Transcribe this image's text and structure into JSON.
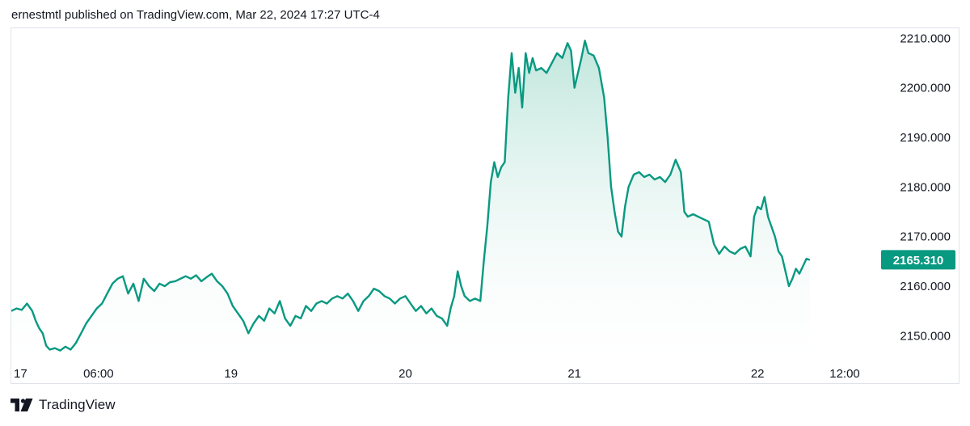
{
  "header": {
    "text": "ernestmtl published on TradingView.com, Mar 22, 2024 17:27 UTC-4"
  },
  "footer": {
    "brand": "TradingView",
    "logo_icon": "tradingview-logo-icon"
  },
  "colors": {
    "line": "#089981",
    "fill_top": "#b8e3d8",
    "fill_bottom": "#ffffff",
    "tag_bg": "#089981",
    "border": "#e0e3eb"
  },
  "chart_data": {
    "type": "area",
    "ylim": [
      2145,
      2212
    ],
    "y_ticks": [
      2150,
      2160,
      2170,
      2180,
      2190,
      2200,
      2210
    ],
    "y_tick_labels": [
      "2150.000",
      "2160.000",
      "2170.000",
      "2180.000",
      "2190.000",
      "2200.000",
      "2210.000"
    ],
    "x_ticks": [
      {
        "label": "17",
        "t": 0
      },
      {
        "label": "06:00",
        "t": 0.5
      },
      {
        "label": "19",
        "t": 1.26
      },
      {
        "label": "20",
        "t": 2.26
      },
      {
        "label": "21",
        "t": 3.23
      },
      {
        "label": "22",
        "t": 4.28
      },
      {
        "label": "12:00",
        "t": 4.78
      }
    ],
    "last_value": 2165.31,
    "last_value_label": "2165.310",
    "t_end": 4.97,
    "points": [
      [
        0.0,
        2155.0
      ],
      [
        0.03,
        2155.5
      ],
      [
        0.06,
        2155.2
      ],
      [
        0.09,
        2156.5
      ],
      [
        0.12,
        2155.0
      ],
      [
        0.14,
        2153.0
      ],
      [
        0.16,
        2151.5
      ],
      [
        0.18,
        2150.5
      ],
      [
        0.2,
        2148.0
      ],
      [
        0.22,
        2147.2
      ],
      [
        0.25,
        2147.5
      ],
      [
        0.28,
        2147.0
      ],
      [
        0.31,
        2147.8
      ],
      [
        0.34,
        2147.2
      ],
      [
        0.37,
        2148.5
      ],
      [
        0.4,
        2150.5
      ],
      [
        0.43,
        2152.5
      ],
      [
        0.46,
        2154.0
      ],
      [
        0.49,
        2155.5
      ],
      [
        0.52,
        2156.5
      ],
      [
        0.55,
        2158.5
      ],
      [
        0.58,
        2160.5
      ],
      [
        0.61,
        2161.5
      ],
      [
        0.64,
        2162.0
      ],
      [
        0.67,
        2158.5
      ],
      [
        0.7,
        2160.5
      ],
      [
        0.73,
        2157.0
      ],
      [
        0.76,
        2161.5
      ],
      [
        0.79,
        2160.0
      ],
      [
        0.82,
        2159.0
      ],
      [
        0.85,
        2160.5
      ],
      [
        0.88,
        2160.0
      ],
      [
        0.91,
        2160.8
      ],
      [
        0.94,
        2161.0
      ],
      [
        0.97,
        2161.5
      ],
      [
        1.0,
        2162.0
      ],
      [
        1.03,
        2161.5
      ],
      [
        1.06,
        2162.2
      ],
      [
        1.09,
        2161.0
      ],
      [
        1.12,
        2161.8
      ],
      [
        1.15,
        2162.5
      ],
      [
        1.18,
        2161.0
      ],
      [
        1.21,
        2160.0
      ],
      [
        1.24,
        2158.5
      ],
      [
        1.27,
        2156.0
      ],
      [
        1.3,
        2154.5
      ],
      [
        1.33,
        2153.0
      ],
      [
        1.36,
        2150.5
      ],
      [
        1.39,
        2152.5
      ],
      [
        1.42,
        2154.0
      ],
      [
        1.45,
        2153.0
      ],
      [
        1.48,
        2155.5
      ],
      [
        1.51,
        2154.5
      ],
      [
        1.54,
        2157.0
      ],
      [
        1.57,
        2153.5
      ],
      [
        1.6,
        2152.0
      ],
      [
        1.63,
        2154.0
      ],
      [
        1.66,
        2153.5
      ],
      [
        1.69,
        2156.0
      ],
      [
        1.72,
        2155.0
      ],
      [
        1.75,
        2156.5
      ],
      [
        1.78,
        2157.0
      ],
      [
        1.81,
        2156.5
      ],
      [
        1.84,
        2157.5
      ],
      [
        1.87,
        2158.0
      ],
      [
        1.9,
        2157.5
      ],
      [
        1.93,
        2158.5
      ],
      [
        1.96,
        2157.0
      ],
      [
        1.99,
        2155.0
      ],
      [
        2.02,
        2157.0
      ],
      [
        2.05,
        2158.0
      ],
      [
        2.08,
        2159.5
      ],
      [
        2.11,
        2159.0
      ],
      [
        2.14,
        2158.0
      ],
      [
        2.17,
        2157.5
      ],
      [
        2.2,
        2156.5
      ],
      [
        2.23,
        2157.5
      ],
      [
        2.26,
        2158.0
      ],
      [
        2.29,
        2156.5
      ],
      [
        2.32,
        2155.0
      ],
      [
        2.35,
        2156.0
      ],
      [
        2.38,
        2154.5
      ],
      [
        2.41,
        2155.5
      ],
      [
        2.44,
        2154.0
      ],
      [
        2.47,
        2153.5
      ],
      [
        2.5,
        2152.0
      ],
      [
        2.52,
        2155.5
      ],
      [
        2.54,
        2158.0
      ],
      [
        2.56,
        2163.0
      ],
      [
        2.58,
        2160.0
      ],
      [
        2.6,
        2158.0
      ],
      [
        2.63,
        2157.0
      ],
      [
        2.66,
        2157.5
      ],
      [
        2.69,
        2157.0
      ],
      [
        2.71,
        2165.0
      ],
      [
        2.73,
        2172.0
      ],
      [
        2.75,
        2181.0
      ],
      [
        2.77,
        2185.0
      ],
      [
        2.79,
        2182.0
      ],
      [
        2.81,
        2184.0
      ],
      [
        2.83,
        2185.0
      ],
      [
        2.85,
        2198.0
      ],
      [
        2.87,
        2207.0
      ],
      [
        2.89,
        2199.0
      ],
      [
        2.91,
        2204.0
      ],
      [
        2.93,
        2196.0
      ],
      [
        2.95,
        2207.0
      ],
      [
        2.97,
        2203.0
      ],
      [
        2.99,
        2206.0
      ],
      [
        3.01,
        2203.5
      ],
      [
        3.04,
        2204.0
      ],
      [
        3.07,
        2203.0
      ],
      [
        3.1,
        2205.0
      ],
      [
        3.13,
        2207.0
      ],
      [
        3.16,
        2206.0
      ],
      [
        3.19,
        2209.0
      ],
      [
        3.21,
        2207.5
      ],
      [
        3.23,
        2200.0
      ],
      [
        3.25,
        2203.0
      ],
      [
        3.27,
        2206.0
      ],
      [
        3.29,
        2209.5
      ],
      [
        3.31,
        2207.0
      ],
      [
        3.34,
        2206.5
      ],
      [
        3.37,
        2204.0
      ],
      [
        3.4,
        2198.0
      ],
      [
        3.42,
        2190.0
      ],
      [
        3.44,
        2180.0
      ],
      [
        3.46,
        2175.0
      ],
      [
        3.48,
        2171.0
      ],
      [
        3.5,
        2170.0
      ],
      [
        3.52,
        2176.0
      ],
      [
        3.54,
        2180.0
      ],
      [
        3.57,
        2182.5
      ],
      [
        3.6,
        2183.0
      ],
      [
        3.63,
        2182.0
      ],
      [
        3.66,
        2182.5
      ],
      [
        3.69,
        2181.5
      ],
      [
        3.72,
        2182.0
      ],
      [
        3.75,
        2181.0
      ],
      [
        3.78,
        2182.5
      ],
      [
        3.81,
        2185.5
      ],
      [
        3.84,
        2183.0
      ],
      [
        3.86,
        2175.0
      ],
      [
        3.88,
        2174.0
      ],
      [
        3.91,
        2174.5
      ],
      [
        3.94,
        2174.0
      ],
      [
        3.97,
        2173.5
      ],
      [
        4.0,
        2173.0
      ],
      [
        4.03,
        2168.5
      ],
      [
        4.06,
        2166.5
      ],
      [
        4.09,
        2168.0
      ],
      [
        4.12,
        2167.0
      ],
      [
        4.15,
        2166.5
      ],
      [
        4.18,
        2167.5
      ],
      [
        4.21,
        2168.0
      ],
      [
        4.24,
        2166.0
      ],
      [
        4.26,
        2174.0
      ],
      [
        4.28,
        2176.0
      ],
      [
        4.3,
        2175.5
      ],
      [
        4.32,
        2178.0
      ],
      [
        4.34,
        2174.0
      ],
      [
        4.36,
        2172.0
      ],
      [
        4.38,
        2170.0
      ],
      [
        4.4,
        2167.0
      ],
      [
        4.42,
        2166.0
      ],
      [
        4.44,
        2163.0
      ],
      [
        4.46,
        2160.0
      ],
      [
        4.48,
        2161.5
      ],
      [
        4.5,
        2163.5
      ],
      [
        4.52,
        2162.5
      ],
      [
        4.54,
        2164.0
      ],
      [
        4.56,
        2165.5
      ],
      [
        4.58,
        2165.3
      ]
    ]
  }
}
